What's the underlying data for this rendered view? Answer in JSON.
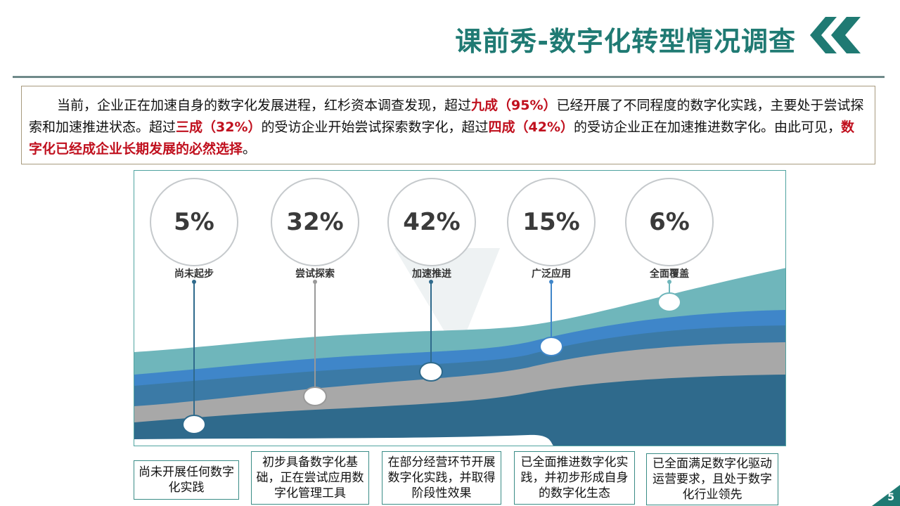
{
  "header": {
    "title": "课前秀-数字化转型情况调查"
  },
  "intro": {
    "p1": "当前，企业正在加速自身的数字化发展进程，红杉资本调查发现，超过",
    "h1": "九成（95%）",
    "p2": "已经开展了不同程度的数字化实践，主要处于尝试探索和加速推进状态。超过",
    "h2": "三成（32%）",
    "p3": "的受访企业开始尝试探索数字化，超过",
    "h3": "四成（42%）",
    "p4": "的受访企业正在加速推进数字化。由此可见，",
    "h4": "数字化已经成企业长期发展的必然选择",
    "p5": "。"
  },
  "stages": [
    {
      "percent": "5%",
      "label": "尚未起步",
      "description": "尚未开展任何数字化实践"
    },
    {
      "percent": "32%",
      "label": "尝试探索",
      "description": "初步具备数字化基础，正在尝试应用数字化管理工具"
    },
    {
      "percent": "42%",
      "label": "加速推进",
      "description": "在部分经营环节开展数字化实践，并取得阶段性效果"
    },
    {
      "percent": "15%",
      "label": "广泛应用",
      "description": "已全面推进数字化实践，并初步形成自身的数字化生态"
    },
    {
      "percent": "6%",
      "label": "全面覆盖",
      "description": "已全面满足数字化驱动运营要求，且处于数字化行业领先"
    }
  ],
  "colors": {
    "title": "#1f7a73",
    "highlight": "#c0101e",
    "band_dark": "#2f6a8c",
    "band_gray": "#a8a8a8",
    "band_blue": "#3f86c9",
    "band_teal": "#6fb6bb"
  },
  "footer": {
    "page_number": "5"
  }
}
